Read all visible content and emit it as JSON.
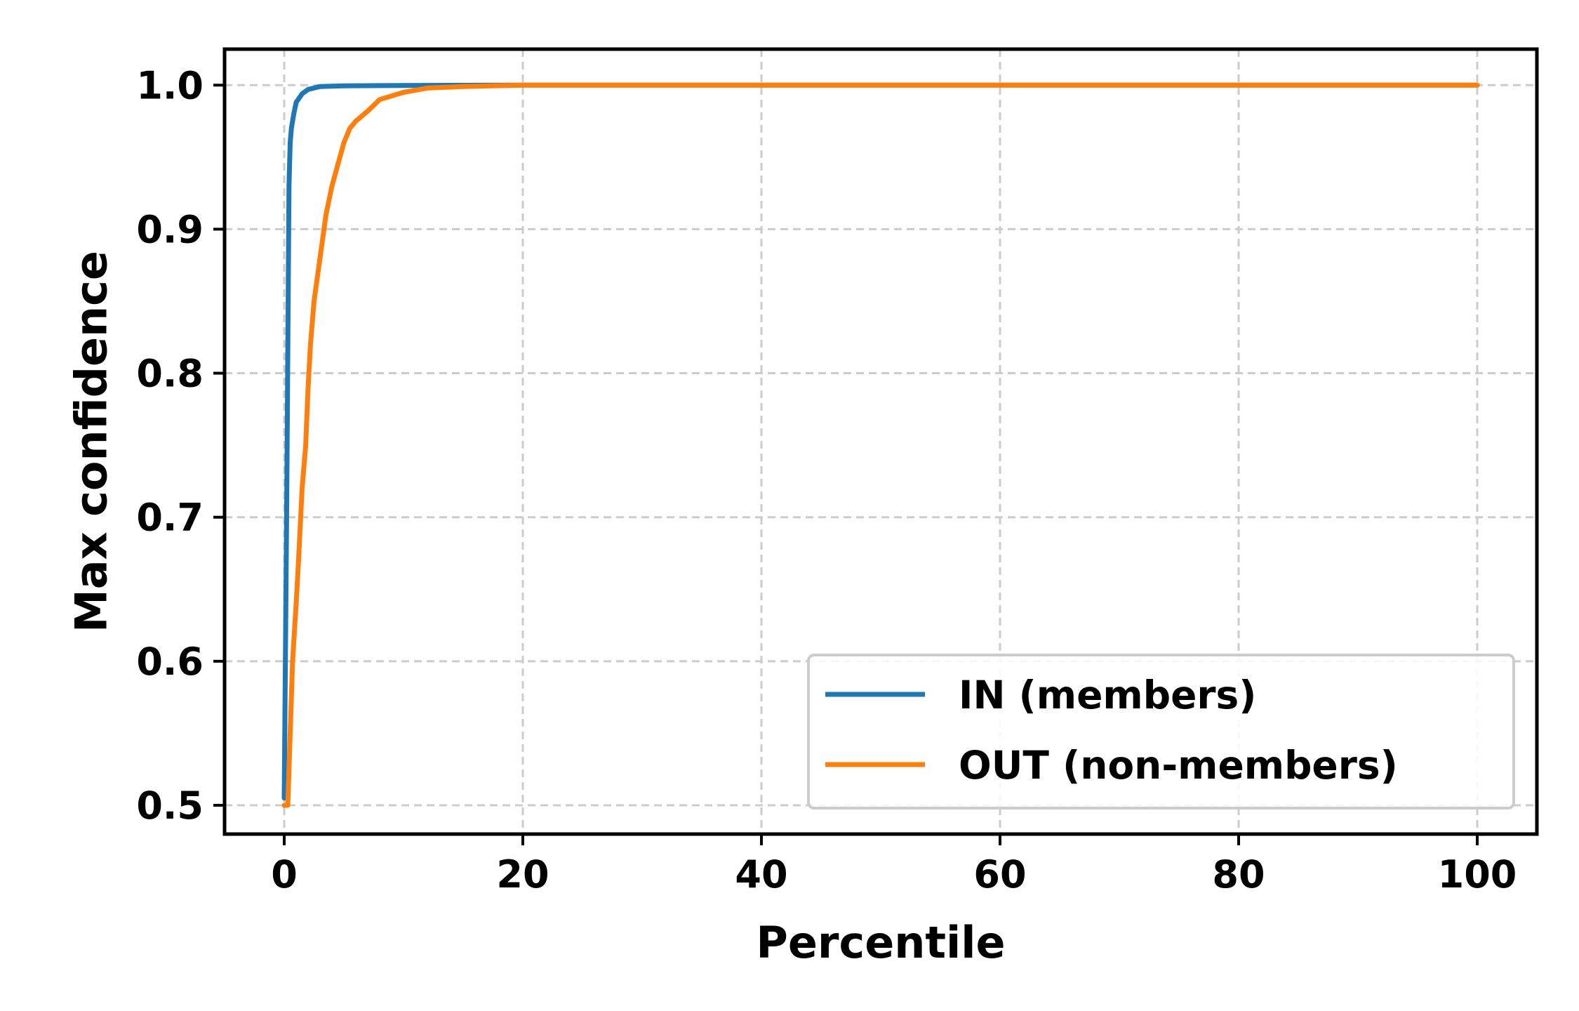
{
  "chart_data": {
    "type": "line",
    "xlabel": "Percentile",
    "ylabel": "Max confidence",
    "xlim": [
      -5,
      105
    ],
    "ylim": [
      0.48,
      1.025
    ],
    "xticks": [
      0,
      20,
      40,
      60,
      80,
      100
    ],
    "yticks": [
      0.5,
      0.6,
      0.7,
      0.8,
      0.9,
      1.0
    ],
    "xtick_labels": [
      "0",
      "20",
      "40",
      "60",
      "80",
      "100"
    ],
    "ytick_labels": [
      "0.5",
      "0.6",
      "0.7",
      "0.8",
      "0.9",
      "1.0"
    ],
    "grid": true,
    "legend_position": "lower-right",
    "series": [
      {
        "name": "IN (members)",
        "color": "#1f77b4",
        "x": [
          0,
          0.2,
          0.4,
          0.5,
          0.6,
          0.8,
          1.0,
          1.5,
          2.0,
          3.0,
          5.0,
          10.0,
          20.0,
          50.0,
          100.0
        ],
        "y": [
          0.505,
          0.7,
          0.93,
          0.96,
          0.97,
          0.98,
          0.988,
          0.994,
          0.997,
          0.999,
          0.9995,
          0.9998,
          1.0,
          1.0,
          1.0
        ]
      },
      {
        "name": "OUT (non-members)",
        "color": "#ff7f0e",
        "x": [
          0,
          0.3,
          0.5,
          0.7,
          1.0,
          1.2,
          1.5,
          1.8,
          2.0,
          2.2,
          2.5,
          3.0,
          3.5,
          4.0,
          4.5,
          5.0,
          5.5,
          6.0,
          7.0,
          8.0,
          10.0,
          12.0,
          15.0,
          20.0,
          50.0,
          100.0
        ],
        "y": [
          0.5,
          0.5,
          0.55,
          0.6,
          0.64,
          0.67,
          0.72,
          0.75,
          0.79,
          0.82,
          0.85,
          0.88,
          0.91,
          0.93,
          0.945,
          0.96,
          0.97,
          0.975,
          0.982,
          0.99,
          0.995,
          0.998,
          0.999,
          1.0,
          1.0,
          1.0
        ]
      }
    ]
  }
}
